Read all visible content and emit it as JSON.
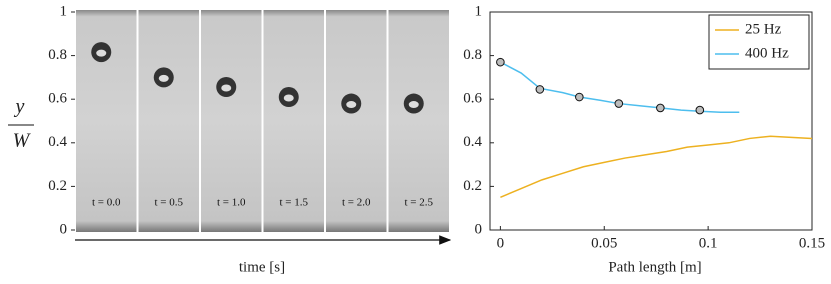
{
  "chart_data": [
    {
      "type": "frames",
      "ylabel": {
        "numerator": "y",
        "denominator": "W"
      },
      "xlabel": "time [s]",
      "categories": [
        "t = 0.0",
        "t = 0.5",
        "t = 1.0",
        "t = 1.5",
        "t = 2.0",
        "t = 2.5"
      ],
      "values": [
        0.816,
        0.7,
        0.656,
        0.61,
        0.58,
        0.58
      ],
      "ylim": [
        0,
        1
      ],
      "yticks": [
        0,
        0.2,
        0.4,
        0.6,
        0.8,
        1
      ]
    },
    {
      "type": "line",
      "xlabel": "Path length [m]",
      "xlim": [
        -0.005,
        0.15
      ],
      "xticks": [
        0,
        0.05,
        0.1,
        0.15
      ],
      "ylim": [
        0,
        1
      ],
      "yticks": [
        0,
        0.2,
        0.4,
        0.6,
        0.8,
        1
      ],
      "legend": "upper right",
      "series": [
        {
          "name": "25 Hz",
          "color": "#edb120",
          "x": [
            0,
            0.01,
            0.02,
            0.03,
            0.04,
            0.05,
            0.06,
            0.07,
            0.08,
            0.09,
            0.1,
            0.11,
            0.12,
            0.13,
            0.14,
            0.15
          ],
          "values": [
            0.15,
            0.19,
            0.23,
            0.26,
            0.29,
            0.31,
            0.33,
            0.345,
            0.36,
            0.38,
            0.39,
            0.4,
            0.42,
            0.43,
            0.425,
            0.42
          ]
        },
        {
          "name": "400 Hz",
          "color": "#4dbeee",
          "x": [
            0,
            0.01,
            0.019,
            0.03,
            0.038,
            0.048,
            0.057,
            0.067,
            0.077,
            0.087,
            0.096,
            0.106,
            0.115
          ],
          "values": [
            0.77,
            0.72,
            0.65,
            0.63,
            0.61,
            0.595,
            0.58,
            0.57,
            0.56,
            0.55,
            0.545,
            0.54,
            0.54
          ],
          "marker_x": [
            0,
            0.019,
            0.038,
            0.057,
            0.077,
            0.096
          ],
          "marker_values": [
            0.77,
            0.645,
            0.61,
            0.58,
            0.56,
            0.55
          ]
        }
      ]
    }
  ]
}
